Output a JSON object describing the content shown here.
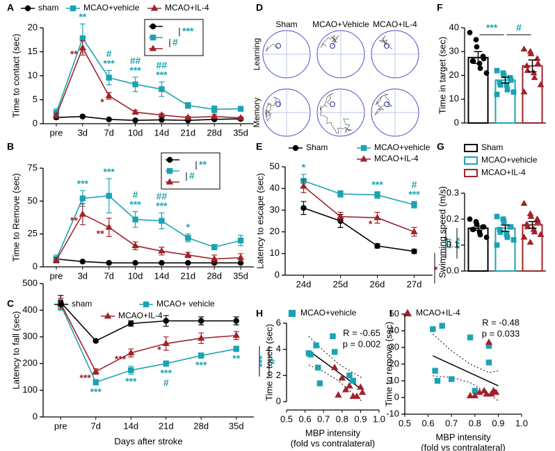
{
  "chart_data": [
    {
      "label": "A",
      "type": "line",
      "ylabel": "Time to contact (sec)",
      "categories": [
        "pre",
        "3d",
        "7d",
        "10d",
        "14d",
        "21d",
        "28d",
        "35d"
      ],
      "ylim": [
        0,
        20
      ],
      "yticks": [
        0,
        5,
        10,
        15,
        20
      ],
      "series": [
        {
          "name": "sham",
          "color": "#000000",
          "marker": "circle",
          "values": [
            1.3,
            1.5,
            0.9,
            0.7,
            0.8,
            0.7,
            0.9,
            1.0
          ],
          "errors": [
            0.3,
            0.2,
            0.1,
            0.1,
            0.1,
            0.1,
            0.1,
            0.1
          ]
        },
        {
          "name": "MCAO+vehicle",
          "color": "#1ba3b3",
          "marker": "square",
          "values": [
            2.3,
            17.8,
            9.6,
            8.2,
            7.2,
            3.8,
            3.0,
            3.1
          ],
          "errors": [
            0.8,
            3,
            1.5,
            1.5,
            1.5,
            0.6,
            0.7,
            0.3
          ],
          "annotations": [
            null,
            [
              "**"
            ],
            [
              "#",
              "***"
            ],
            [
              "##",
              "***"
            ],
            [
              "##",
              "***"
            ],
            null,
            null,
            null
          ]
        },
        {
          "name": "MCAO+IL-4",
          "color": "#a0222a",
          "marker": "triangle",
          "values": [
            1.7,
            15.8,
            5.8,
            2.4,
            1.8,
            1.3,
            1.5,
            1.2
          ],
          "errors": [
            0.5,
            1.5,
            0.7,
            0.4,
            0.3,
            0.2,
            0.4,
            0.2
          ],
          "annotations": [
            null,
            [
              "**"
            ],
            [
              "*"
            ],
            null,
            null,
            null,
            null,
            null
          ]
        }
      ],
      "comparisons": [
        {
          "text": "***",
          "color": "#1ba3b3"
        },
        {
          "text": "#",
          "color": "#1ba3b3"
        }
      ]
    },
    {
      "label": "B",
      "type": "line",
      "ylabel": "Time to Remove (sec)",
      "categories": [
        "pre",
        "3d",
        "7d",
        "10d",
        "14d",
        "21d",
        "28d",
        "35d"
      ],
      "ylim": [
        0,
        75
      ],
      "yticks": [
        0,
        25,
        50,
        75
      ],
      "series": [
        {
          "color": "#000000",
          "marker": "circle",
          "values": [
            6,
            4,
            3,
            3,
            3,
            3,
            3,
            3
          ],
          "errors": [
            1,
            0.5,
            0.5,
            0.5,
            0.5,
            0.5,
            0.5,
            0.5
          ]
        },
        {
          "color": "#1ba3b3",
          "marker": "square",
          "values": [
            6,
            52,
            54,
            36,
            35,
            22,
            15,
            20
          ],
          "errors": [
            3,
            6,
            13,
            6,
            6,
            3,
            2,
            4
          ],
          "annotations": [
            null,
            [
              "***"
            ],
            [
              "***"
            ],
            [
              "#",
              "***"
            ],
            [
              "##",
              "***"
            ],
            [
              "*"
            ],
            null,
            null
          ]
        },
        {
          "color": "#a0222a",
          "marker": "triangle",
          "values": [
            5,
            40,
            30,
            16,
            12,
            9,
            6,
            7
          ],
          "errors": [
            2,
            8,
            7,
            3,
            3,
            2,
            3,
            3
          ],
          "annotations": [
            null,
            [
              "**"
            ],
            [
              "**"
            ],
            null,
            null,
            null,
            null,
            null
          ]
        }
      ],
      "comparisons": [
        {
          "text": "**",
          "color": "#1ba3b3"
        },
        {
          "text": "#",
          "color": "#1ba3b3"
        }
      ]
    },
    {
      "label": "C",
      "type": "line",
      "ylabel": "Latency to fall (sec)",
      "xlabel": "Days after stroke",
      "categories": [
        "pre",
        "7d",
        "14d",
        "21d",
        "28d",
        "35d"
      ],
      "ylim": [
        0,
        500
      ],
      "yticks": [
        0,
        100,
        200,
        300,
        400,
        500
      ],
      "series": [
        {
          "name": "sham",
          "color": "#000000",
          "marker": "circle",
          "values": [
            430,
            285,
            350,
            360,
            360,
            360
          ],
          "errors": [
            25,
            5,
            10,
            20,
            15,
            15
          ]
        },
        {
          "name": "MCAO+ vehicle",
          "color": "#1ba3b3",
          "marker": "square",
          "values": [
            420,
            130,
            175,
            200,
            230,
            255
          ],
          "errors": [
            20,
            10,
            15,
            10,
            10,
            10
          ],
          "annotations": [
            null,
            [
              "***"
            ],
            [
              "***"
            ],
            [
              "***",
              "#"
            ],
            [
              "***"
            ],
            [
              "**"
            ]
          ]
        },
        {
          "name": "MCAO+IL-4",
          "color": "#a0222a",
          "marker": "triangle",
          "values": [
            425,
            170,
            240,
            275,
            295,
            305
          ],
          "errors": [
            20,
            10,
            15,
            25,
            20,
            15
          ],
          "annotations": [
            null,
            [
              "***"
            ],
            [
              "***"
            ],
            [
              "*"
            ],
            null,
            null
          ]
        }
      ],
      "comparisons": [
        {
          "text": "***",
          "color": "#1ba3b3"
        },
        {
          "text": "#",
          "color": "#1ba3b3"
        }
      ]
    },
    {
      "label": "D",
      "type": "image-grid",
      "columns": [
        "Sham",
        "MCAO+Vehicle",
        "MCAO+IL-4"
      ],
      "rows": [
        "Learning",
        "Memory"
      ]
    },
    {
      "label": "E",
      "type": "line",
      "ylabel": "Latency to escape (sec)",
      "categories": [
        "24d",
        "25d",
        "26d",
        "27d"
      ],
      "ylim": [
        0,
        50
      ],
      "yticks": [
        0,
        10,
        20,
        30,
        40,
        50
      ],
      "series": [
        {
          "name": "Sham",
          "color": "#000000",
          "marker": "circle",
          "values": [
            31,
            25,
            13.5,
            11
          ],
          "errors": [
            3,
            3,
            1,
            1
          ]
        },
        {
          "name": "MCAO+vehicle",
          "color": "#1ba3b3",
          "marker": "square",
          "values": [
            43.5,
            37.5,
            37,
            32.5
          ],
          "errors": [
            3,
            1.5,
            1.5,
            1.5
          ],
          "annotations": [
            [
              "*"
            ],
            null,
            [
              "***"
            ],
            [
              "#",
              "***"
            ]
          ]
        },
        {
          "name": "MCAO+IL-4",
          "color": "#a0222a",
          "marker": "triangle",
          "values": [
            41,
            27,
            26.5,
            20
          ],
          "errors": [
            3,
            2,
            2.5,
            2
          ],
          "annotations": [
            null,
            null,
            [
              "*"
            ],
            null
          ]
        }
      ],
      "comparisons": [
        {
          "text": "*",
          "color": "#a0222a"
        },
        {
          "text": "##",
          "color": "#1ba3b3"
        },
        {
          "text": "***",
          "color": "#1ba3b3"
        }
      ]
    },
    {
      "label": "F",
      "type": "bar-scatter",
      "ylabel": "Time in target (sec)",
      "ylim": [
        0,
        40
      ],
      "yticks": [
        0,
        10,
        20,
        30,
        40
      ],
      "series": [
        {
          "color": "#000000",
          "marker": "circle",
          "values": [
            27.5
          ],
          "errors": [
            2.5
          ],
          "points": [
            38,
            35,
            32,
            28,
            27,
            26,
            26,
            25,
            23,
            21
          ]
        },
        {
          "color": "#1ba3b3",
          "marker": "square",
          "values": [
            18
          ],
          "errors": [
            1.2
          ],
          "points": [
            22,
            21,
            20,
            19,
            18,
            17,
            16,
            16,
            14,
            13,
            12
          ]
        },
        {
          "color": "#a0222a",
          "marker": "triangle",
          "values": [
            24
          ],
          "errors": [
            2.5
          ],
          "points": [
            31,
            30,
            29,
            27,
            25,
            24,
            22,
            21,
            19,
            16,
            13
          ]
        }
      ],
      "brackets": [
        {
          "text": "***",
          "color": "#1ba3b3",
          "between": [
            0,
            1
          ]
        },
        {
          "text": "#",
          "color": "#1ba3b3",
          "between": [
            1,
            2
          ]
        }
      ]
    },
    {
      "label": "G",
      "type": "bar-scatter",
      "ylabel": "Swimming speed (m/s)",
      "ylim": [
        0,
        0.3
      ],
      "yticks": [
        {
          "value": 0,
          "label": "0.0"
        },
        0.1,
        0.2,
        0.3
      ],
      "series": [
        {
          "name": "Sham",
          "color": "#000000",
          "marker": "circle",
          "values": [
            0.165
          ],
          "errors": [
            0.008
          ],
          "points": [
            0.2,
            0.19,
            0.18,
            0.17,
            0.17,
            0.16,
            0.16,
            0.15,
            0.14,
            0.13
          ]
        },
        {
          "name": "MCAO+vehicle",
          "color": "#1ba3b3",
          "marker": "square",
          "values": [
            0.165
          ],
          "errors": [
            0.012
          ],
          "points": [
            0.21,
            0.2,
            0.19,
            0.17,
            0.17,
            0.16,
            0.15,
            0.14,
            0.13,
            0.12,
            0.1
          ]
        },
        {
          "name": "MCAO+IL-4",
          "color": "#a0222a",
          "marker": "triangle",
          "values": [
            0.178
          ],
          "errors": [
            0.013
          ],
          "points": [
            0.26,
            0.22,
            0.21,
            0.2,
            0.19,
            0.18,
            0.17,
            0.16,
            0.15,
            0.14,
            0.13,
            0.11
          ]
        }
      ]
    },
    {
      "label": "H",
      "type": "scatter",
      "ylabel": "Time to touch (sec)",
      "xlabel": [
        "MBP intensity",
        "(fold vs contralateral)"
      ],
      "xlim": [
        0.5,
        1
      ],
      "xticks": [
        0.5,
        0.6,
        0.7,
        0.8,
        0.9,
        {
          "value": 1,
          "label": "1.0"
        }
      ],
      "ylim": [
        0,
        6
      ],
      "yticks": [
        0,
        2,
        4,
        6
      ],
      "series": [
        {
          "name": "MCAO+vehicle",
          "color": "#1ba3b3",
          "marker": "square",
          "x": [
            0.62,
            0.63,
            0.66,
            0.67,
            0.68,
            0.75,
            0.76,
            0.84,
            0.86
          ],
          "values": [
            3.7,
            3.6,
            4.3,
            2.6,
            1.4,
            5.0,
            3.8,
            2.0,
            1.6
          ]
        },
        {
          "name": "MCAO+IL-4",
          "color": "#a0222a",
          "marker": "triangle",
          "x": [
            0.76,
            0.78,
            0.8,
            0.82,
            0.84,
            0.86,
            0.88,
            0.9,
            0.91
          ],
          "values": [
            2.6,
            0.5,
            1.8,
            0.9,
            1.2,
            0.4,
            0.4,
            1.1,
            0.7
          ]
        }
      ],
      "fit": {
        "x": [
          0.62,
          0.91
        ],
        "y": [
          3.9,
          0.9
        ]
      },
      "ci": {
        "x": [
          0.62,
          0.7,
          0.78,
          0.86,
          0.91
        ],
        "upper": [
          5.0,
          3.9,
          2.9,
          2.2,
          1.8
        ],
        "lower": [
          2.8,
          2.3,
          1.6,
          0.6,
          0.0
        ]
      },
      "stats": [
        "R = -0.65",
        "p = 0.002"
      ]
    },
    {
      "label": "I",
      "type": "scatter",
      "ylabel": "Time to remove (sec)",
      "xlabel": [
        "MBP intensity",
        "(fold vs contralateral)"
      ],
      "xlim": [
        0.5,
        1
      ],
      "xticks": [
        0.5,
        0.6,
        0.7,
        0.8,
        0.9,
        {
          "value": 1,
          "label": "1.0"
        }
      ],
      "ylim": [
        -10,
        50
      ],
      "yticks": [
        -10,
        0,
        10,
        20,
        30,
        40,
        50
      ],
      "series": [
        {
          "color": "#1ba3b3",
          "marker": "square",
          "x": [
            0.62,
            0.63,
            0.66,
            0.64,
            0.7,
            0.78,
            0.8,
            0.86,
            0.86
          ],
          "values": [
            41,
            16,
            43,
            10,
            11,
            36,
            4,
            21,
            31
          ]
        },
        {
          "color": "#a0222a",
          "marker": "triangle",
          "x": [
            0.78,
            0.8,
            0.82,
            0.84,
            0.85,
            0.86,
            0.87,
            0.88,
            0.89
          ],
          "values": [
            1,
            1,
            3,
            4,
            2,
            33,
            2,
            4,
            3
          ]
        }
      ],
      "fit": {
        "x": [
          0.62,
          0.9
        ],
        "y": [
          25,
          7
        ]
      },
      "ci": {
        "x": [
          0.62,
          0.7,
          0.78,
          0.86,
          0.9
        ],
        "upper": [
          38,
          28,
          20,
          15,
          16
        ],
        "lower": [
          13,
          12,
          9,
          2,
          -2
        ]
      },
      "stats": [
        "R = -0.48",
        "p = 0.033"
      ]
    }
  ]
}
